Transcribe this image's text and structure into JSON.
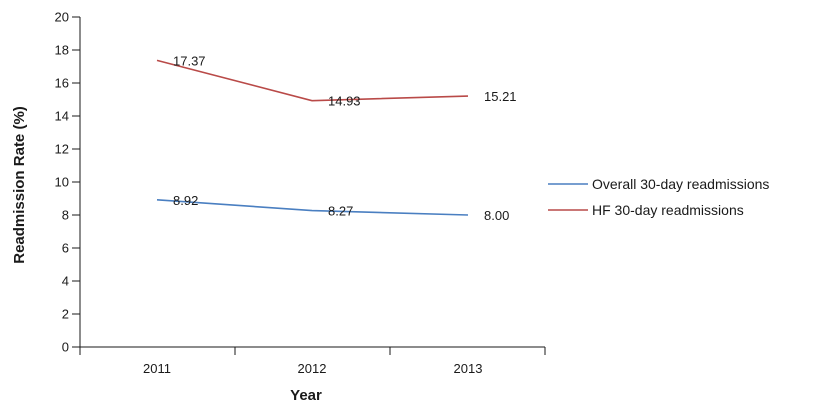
{
  "chart_data": {
    "type": "line",
    "title": "",
    "xlabel": "Year",
    "ylabel": "Readmission Rate (%)",
    "categories": [
      "2011",
      "2012",
      "2013"
    ],
    "ylim": [
      0,
      20
    ],
    "yticks": [
      "0",
      "2",
      "4",
      "6",
      "8",
      "10",
      "12",
      "14",
      "16",
      "18",
      "20"
    ],
    "grid": false,
    "legend_position": "right",
    "series": [
      {
        "name": "Overall 30-day readmissions",
        "color": "#4a7fc1",
        "values": [
          8.92,
          8.27,
          8.0
        ],
        "labels": [
          "8.92",
          "8.27",
          "8.00"
        ]
      },
      {
        "name": "HF 30-day readmissions",
        "color": "#b94a48",
        "values": [
          17.37,
          14.93,
          15.21
        ],
        "labels": [
          "17.37",
          "14.93",
          "15.21"
        ]
      }
    ]
  }
}
